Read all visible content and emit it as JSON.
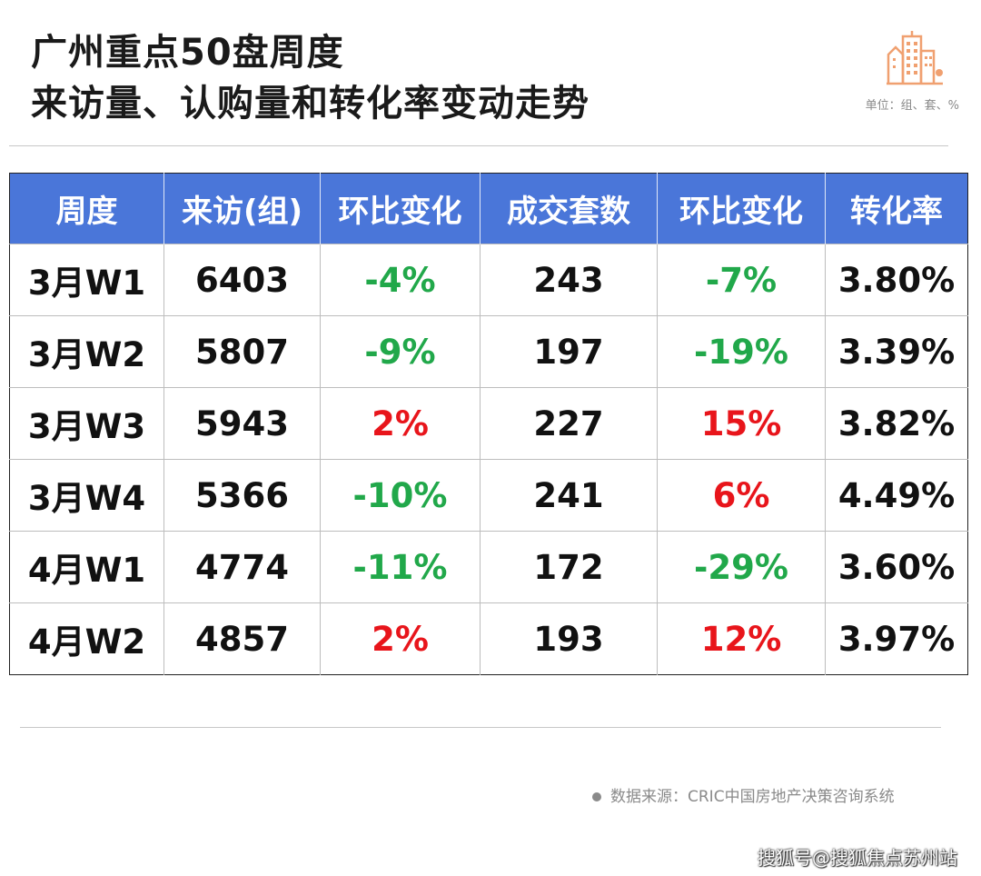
{
  "title_line1": "广州重点50盘周度",
  "title_line2": "来访量、认购量和转化率变动走势",
  "unit": "单位：组、套、%",
  "source": "数据来源：CRIC中国房地产决策咨询系统",
  "watermark": "搜狐号@搜狐焦点苏州站",
  "colors": {
    "header_bg": "#4a76d9",
    "positive": "#e8151b",
    "negative": "#21a84a",
    "logo": "#f0a070"
  },
  "chart_data": {
    "type": "table",
    "columns": [
      "周度",
      "来访(组)",
      "环比变化",
      "成交套数",
      "环比变化",
      "转化率"
    ],
    "rows": [
      [
        "3月W1",
        "6403",
        "-4%",
        "243",
        "-7%",
        "3.80%"
      ],
      [
        "3月W2",
        "5807",
        "-9%",
        "197",
        "-19%",
        "3.39%"
      ],
      [
        "3月W3",
        "5943",
        "2%",
        "227",
        "15%",
        "3.82%"
      ],
      [
        "3月W4",
        "5366",
        "-10%",
        "241",
        "6%",
        "4.49%"
      ],
      [
        "4月W1",
        "4774",
        "-11%",
        "172",
        "-29%",
        "3.60%"
      ],
      [
        "4月W2",
        "4857",
        "2%",
        "193",
        "12%",
        "3.97%"
      ]
    ]
  }
}
